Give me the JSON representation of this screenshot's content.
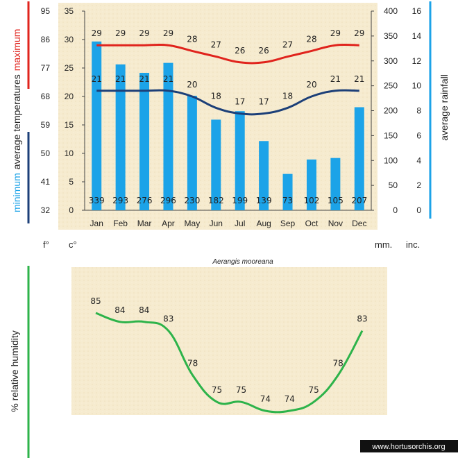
{
  "chart_data": [
    {
      "type": "bar+line",
      "months": [
        "Jan",
        "Feb",
        "Mar",
        "Apr",
        "May",
        "Jun",
        "Jul",
        "Aug",
        "Sep",
        "Oct",
        "Nov",
        "Dec"
      ],
      "rainfall_mm": [
        339,
        293,
        276,
        296,
        230,
        182,
        199,
        139,
        73,
        102,
        105,
        207
      ],
      "max_temp_c": [
        29,
        29,
        29,
        29,
        28,
        27,
        26,
        26,
        27,
        28,
        29,
        29
      ],
      "min_temp_c": [
        21,
        21,
        21,
        21,
        20,
        18,
        17,
        17,
        18,
        20,
        21,
        21
      ],
      "axes": {
        "fahrenheit_ticks": [
          "95",
          "86",
          "77",
          "68",
          "59",
          "50",
          "41",
          "32"
        ],
        "celsius_ticks": [
          "35",
          "30",
          "25",
          "20",
          "15",
          "10",
          "5",
          "0"
        ],
        "mm_ticks": [
          "400",
          "350",
          "300",
          "250",
          "200",
          "150",
          "100",
          "50",
          "0"
        ],
        "inch_ticks": [
          "16",
          "14",
          "12",
          "10",
          "8",
          "6",
          "4",
          "2",
          "0"
        ],
        "celsius_range": [
          0,
          35
        ],
        "mm_range": [
          0,
          400
        ]
      },
      "left_title": {
        "minimum": "minimum",
        "average": "average temperatures",
        "maximum": "maximum"
      },
      "right_title": "average rainfall",
      "unit_labels": {
        "f": "f°",
        "c": "c°",
        "mm": "mm.",
        "inc": "inc."
      },
      "colors": {
        "rain": "#1ca3e8",
        "max": "#e0231c",
        "min": "#1c3f78",
        "bg": "#f6ebcf"
      }
    },
    {
      "type": "line",
      "species": "Aerangis mooreana",
      "humidity_pct": [
        85,
        84,
        84,
        83,
        78,
        75,
        75,
        74,
        74,
        75,
        78,
        83
      ],
      "ylabel": "%  relative humidity",
      "colors": {
        "line": "#2db34a",
        "bg": "#f6ebcf"
      }
    }
  ],
  "watermark": "www.hortusorchis.org"
}
